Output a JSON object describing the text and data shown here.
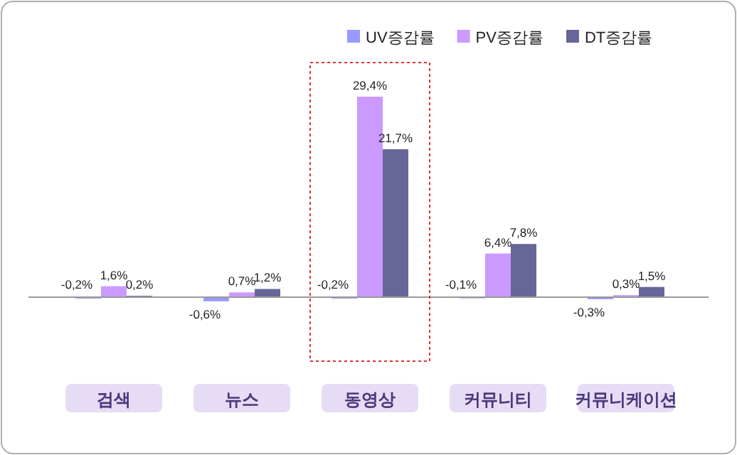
{
  "chart_data": {
    "type": "bar",
    "categories": [
      "검색",
      "뉴스",
      "동영상",
      "커뮤니티",
      "커뮤니케이션"
    ],
    "series": [
      {
        "name": "UV증감률",
        "color": "#9999ff",
        "values": [
          -0.2,
          -0.6,
          -0.2,
          -0.1,
          -0.3
        ],
        "value_labels": [
          "-0,2%",
          "-0,6%",
          "-0,2%",
          "-0,1%",
          "-0,3%"
        ]
      },
      {
        "name": "PV증감률",
        "color": "#cc99ff",
        "values": [
          1.6,
          0.7,
          29.4,
          6.4,
          0.3
        ],
        "value_labels": [
          "1,6%",
          "0,7%",
          "29,4%",
          "6,4%",
          "0,3%"
        ]
      },
      {
        "name": "DT증감률",
        "color": "#666699",
        "values": [
          0.2,
          1.2,
          21.7,
          7.8,
          1.5
        ],
        "value_labels": [
          "0,2%",
          "1,2%",
          "21,7%",
          "7,8%",
          "1,5%"
        ]
      }
    ],
    "legend": "top right"
  }
}
